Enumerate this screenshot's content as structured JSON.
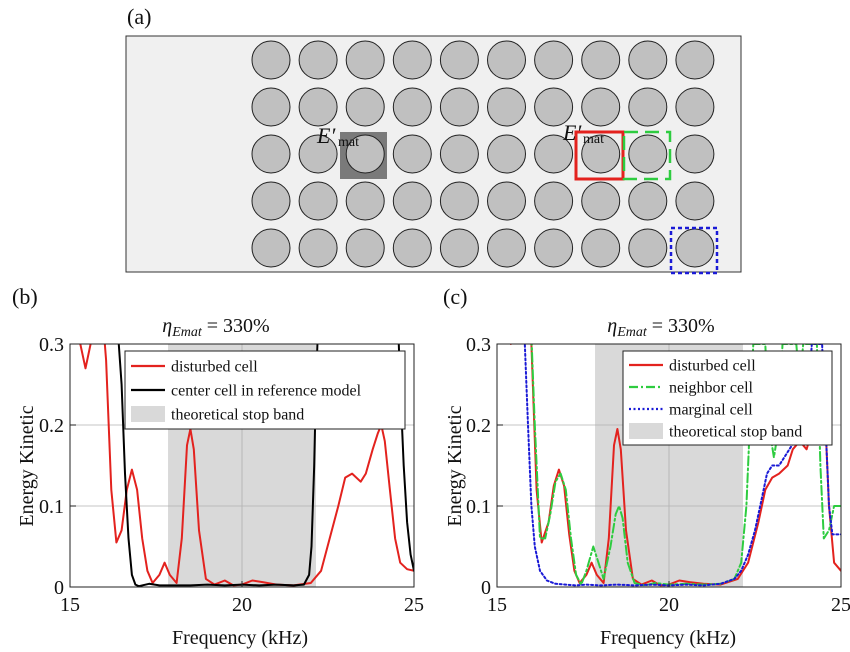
{
  "panels": {
    "a": {
      "label": "(a)",
      "e_label": "E′",
      "e_sub": "mat"
    },
    "b": {
      "label": "(b)"
    },
    "c": {
      "label": "(c)"
    }
  },
  "colors": {
    "disturbed": "#e3221e",
    "reference": "#000000",
    "neighbor": "#2ecc40",
    "marginal": "#1a1ad6",
    "stopband": "#d9d9d9",
    "plate": "#f0f0f0",
    "inclusion": "#c0c0c0",
    "highlight": "#7a7a7a"
  },
  "chart_data": [
    {
      "panel": "b",
      "type": "line",
      "title_eta": "η",
      "title_sub": "Emat",
      "title_rest": " = 330%",
      "xlabel": "Frequency (kHz)",
      "ylabel": "Energy Kinetic",
      "xlim": [
        15,
        25
      ],
      "ylim": [
        0,
        0.3
      ],
      "xticks": [
        "15",
        "20",
        "25"
      ],
      "yticks": [
        "0",
        "0.1",
        "0.2",
        "0.3"
      ],
      "grid": true,
      "legend_position": "top-right",
      "stop_band": {
        "from": 17.85,
        "to": 22.15,
        "label": "theoretical stop band"
      },
      "series": [
        {
          "name": "disturbed cell",
          "color": "#e3221e",
          "style": "solid",
          "points": [
            [
              15.0,
              0.32
            ],
            [
              15.15,
              0.34
            ],
            [
              15.3,
              0.3
            ],
            [
              15.45,
              0.27
            ],
            [
              15.6,
              0.3
            ],
            [
              15.75,
              0.34
            ],
            [
              15.9,
              0.36
            ],
            [
              16.05,
              0.28
            ],
            [
              16.2,
              0.12
            ],
            [
              16.35,
              0.055
            ],
            [
              16.5,
              0.07
            ],
            [
              16.65,
              0.12
            ],
            [
              16.8,
              0.145
            ],
            [
              16.95,
              0.12
            ],
            [
              17.1,
              0.06
            ],
            [
              17.25,
              0.02
            ],
            [
              17.4,
              0.005
            ],
            [
              17.6,
              0.015
            ],
            [
              17.75,
              0.03
            ],
            [
              17.9,
              0.015
            ],
            [
              18.1,
              0.005
            ],
            [
              18.25,
              0.06
            ],
            [
              18.4,
              0.175
            ],
            [
              18.5,
              0.195
            ],
            [
              18.6,
              0.17
            ],
            [
              18.75,
              0.07
            ],
            [
              18.95,
              0.01
            ],
            [
              19.2,
              0.003
            ],
            [
              19.5,
              0.008
            ],
            [
              19.75,
              0.002
            ],
            [
              20.0,
              0.003
            ],
            [
              20.3,
              0.008
            ],
            [
              20.6,
              0.006
            ],
            [
              21.0,
              0.003
            ],
            [
              21.5,
              0.002
            ],
            [
              22.0,
              0.005
            ],
            [
              22.3,
              0.02
            ],
            [
              22.55,
              0.06
            ],
            [
              22.8,
              0.1
            ],
            [
              23.0,
              0.135
            ],
            [
              23.2,
              0.14
            ],
            [
              23.45,
              0.13
            ],
            [
              23.6,
              0.14
            ],
            [
              23.8,
              0.17
            ],
            [
              23.95,
              0.19
            ],
            [
              24.05,
              0.2
            ],
            [
              24.15,
              0.18
            ],
            [
              24.3,
              0.12
            ],
            [
              24.45,
              0.06
            ],
            [
              24.6,
              0.03
            ],
            [
              24.8,
              0.022
            ],
            [
              25.0,
              0.02
            ]
          ]
        },
        {
          "name": "center cell in reference model",
          "color": "#000000",
          "style": "solid",
          "points": [
            [
              16.4,
              0.31
            ],
            [
              16.5,
              0.25
            ],
            [
              16.6,
              0.14
            ],
            [
              16.7,
              0.06
            ],
            [
              16.8,
              0.015
            ],
            [
              16.9,
              0.003
            ],
            [
              17.0,
              0.001
            ],
            [
              17.3,
              0.004
            ],
            [
              17.6,
              0.002
            ],
            [
              18.0,
              0.002
            ],
            [
              18.5,
              0.002
            ],
            [
              19.0,
              0.003
            ],
            [
              19.5,
              0.002
            ],
            [
              20.0,
              0.003
            ],
            [
              20.5,
              0.002
            ],
            [
              21.0,
              0.003
            ],
            [
              21.5,
              0.002
            ],
            [
              21.8,
              0.003
            ],
            [
              21.95,
              0.015
            ],
            [
              22.02,
              0.05
            ],
            [
              22.1,
              0.15
            ],
            [
              22.15,
              0.25
            ],
            [
              22.2,
              0.31
            ],
            [
              24.55,
              0.31
            ],
            [
              24.6,
              0.25
            ],
            [
              24.7,
              0.15
            ],
            [
              24.8,
              0.08
            ],
            [
              24.9,
              0.04
            ],
            [
              25.0,
              0.02
            ]
          ]
        }
      ],
      "legend": [
        {
          "name": "disturbed cell",
          "kind": "line",
          "color": "#e3221e",
          "style": "solid"
        },
        {
          "name": "center cell in reference model",
          "kind": "line",
          "color": "#000000",
          "style": "solid"
        },
        {
          "name": "theoretical stop band",
          "kind": "patch",
          "color": "#d9d9d9",
          "style": "solid"
        }
      ]
    },
    {
      "panel": "c",
      "type": "line",
      "title_eta": "η",
      "title_sub": "Emat",
      "title_rest": " = 330%",
      "xlabel": "Frequency (kHz)",
      "ylabel": "Energy Kinetic",
      "xlim": [
        15,
        25
      ],
      "ylim": [
        0,
        0.3
      ],
      "xticks": [
        "15",
        "20",
        "25"
      ],
      "yticks": [
        "0",
        "0.1",
        "0.2",
        "0.3"
      ],
      "grid": true,
      "legend_position": "top-right",
      "stop_band": {
        "from": 17.85,
        "to": 22.15,
        "label": "theoretical stop band"
      },
      "series": [
        {
          "name": "disturbed cell",
          "color": "#e3221e",
          "style": "solid",
          "points": [
            [
              15.0,
              0.32
            ],
            [
              15.2,
              0.31
            ],
            [
              15.4,
              0.3
            ],
            [
              15.6,
              0.31
            ],
            [
              15.8,
              0.33
            ],
            [
              16.0,
              0.3
            ],
            [
              16.15,
              0.12
            ],
            [
              16.3,
              0.055
            ],
            [
              16.5,
              0.08
            ],
            [
              16.65,
              0.125
            ],
            [
              16.8,
              0.145
            ],
            [
              16.95,
              0.125
            ],
            [
              17.1,
              0.065
            ],
            [
              17.25,
              0.02
            ],
            [
              17.4,
              0.005
            ],
            [
              17.6,
              0.015
            ],
            [
              17.75,
              0.03
            ],
            [
              17.9,
              0.015
            ],
            [
              18.1,
              0.005
            ],
            [
              18.25,
              0.06
            ],
            [
              18.4,
              0.175
            ],
            [
              18.5,
              0.195
            ],
            [
              18.6,
              0.17
            ],
            [
              18.75,
              0.07
            ],
            [
              18.95,
              0.01
            ],
            [
              19.2,
              0.003
            ],
            [
              19.5,
              0.008
            ],
            [
              19.75,
              0.002
            ],
            [
              20.0,
              0.003
            ],
            [
              20.3,
              0.008
            ],
            [
              20.6,
              0.006
            ],
            [
              21.0,
              0.004
            ],
            [
              21.5,
              0.003
            ],
            [
              22.0,
              0.01
            ],
            [
              22.3,
              0.03
            ],
            [
              22.6,
              0.08
            ],
            [
              22.8,
              0.12
            ],
            [
              23.0,
              0.135
            ],
            [
              23.2,
              0.14
            ],
            [
              23.45,
              0.15
            ],
            [
              23.6,
              0.17
            ],
            [
              23.8,
              0.18
            ],
            [
              24.0,
              0.17
            ],
            [
              24.2,
              0.2
            ],
            [
              24.4,
              0.23
            ],
            [
              24.55,
              0.2
            ],
            [
              24.65,
              0.1
            ],
            [
              24.8,
              0.03
            ],
            [
              25.0,
              0.02
            ]
          ]
        },
        {
          "name": "neighbor cell",
          "color": "#2ecc40",
          "style": "dashdot",
          "points": [
            [
              16.0,
              0.31
            ],
            [
              16.1,
              0.2
            ],
            [
              16.25,
              0.06
            ],
            [
              16.4,
              0.06
            ],
            [
              16.55,
              0.09
            ],
            [
              16.7,
              0.13
            ],
            [
              16.85,
              0.14
            ],
            [
              17.0,
              0.12
            ],
            [
              17.15,
              0.06
            ],
            [
              17.3,
              0.015
            ],
            [
              17.45,
              0.003
            ],
            [
              17.6,
              0.02
            ],
            [
              17.8,
              0.05
            ],
            [
              17.95,
              0.03
            ],
            [
              18.1,
              0.01
            ],
            [
              18.3,
              0.05
            ],
            [
              18.45,
              0.09
            ],
            [
              18.55,
              0.1
            ],
            [
              18.65,
              0.085
            ],
            [
              18.8,
              0.03
            ],
            [
              19.0,
              0.005
            ],
            [
              19.3,
              0.002
            ],
            [
              19.6,
              0.005
            ],
            [
              20.0,
              0.003
            ],
            [
              20.5,
              0.004
            ],
            [
              21.0,
              0.003
            ],
            [
              21.5,
              0.004
            ],
            [
              21.9,
              0.01
            ],
            [
              22.1,
              0.03
            ],
            [
              22.25,
              0.1
            ],
            [
              22.35,
              0.2
            ],
            [
              22.45,
              0.3
            ],
            [
              22.8,
              0.3
            ],
            [
              22.9,
              0.2
            ],
            [
              23.05,
              0.16
            ],
            [
              23.2,
              0.2
            ],
            [
              23.3,
              0.3
            ],
            [
              23.7,
              0.3
            ],
            [
              23.8,
              0.25
            ],
            [
              23.9,
              0.3
            ],
            [
              24.3,
              0.3
            ],
            [
              24.4,
              0.15
            ],
            [
              24.5,
              0.06
            ],
            [
              24.65,
              0.07
            ],
            [
              24.8,
              0.1
            ],
            [
              25.0,
              0.1
            ]
          ]
        },
        {
          "name": "marginal cell",
          "color": "#1a1ad6",
          "style": "dotted",
          "points": [
            [
              15.8,
              0.31
            ],
            [
              15.9,
              0.2
            ],
            [
              16.0,
              0.1
            ],
            [
              16.1,
              0.05
            ],
            [
              16.25,
              0.02
            ],
            [
              16.45,
              0.008
            ],
            [
              16.7,
              0.004
            ],
            [
              17.0,
              0.003
            ],
            [
              17.3,
              0.002
            ],
            [
              17.6,
              0.003
            ],
            [
              18.0,
              0.002
            ],
            [
              18.5,
              0.003
            ],
            [
              19.0,
              0.002
            ],
            [
              19.5,
              0.003
            ],
            [
              20.0,
              0.002
            ],
            [
              20.5,
              0.003
            ],
            [
              21.0,
              0.002
            ],
            [
              21.5,
              0.004
            ],
            [
              21.9,
              0.01
            ],
            [
              22.1,
              0.02
            ],
            [
              22.3,
              0.04
            ],
            [
              22.5,
              0.07
            ],
            [
              22.7,
              0.11
            ],
            [
              22.85,
              0.14
            ],
            [
              23.0,
              0.15
            ],
            [
              23.2,
              0.15
            ],
            [
              23.5,
              0.17
            ],
            [
              23.8,
              0.19
            ],
            [
              24.0,
              0.2
            ],
            [
              24.15,
              0.3
            ],
            [
              24.45,
              0.3
            ],
            [
              24.55,
              0.2
            ],
            [
              24.65,
              0.1
            ],
            [
              24.75,
              0.065
            ],
            [
              24.9,
              0.065
            ],
            [
              25.0,
              0.065
            ]
          ]
        }
      ],
      "legend": [
        {
          "name": "disturbed cell",
          "kind": "line",
          "color": "#e3221e",
          "style": "solid"
        },
        {
          "name": "neighbor cell",
          "kind": "line",
          "color": "#2ecc40",
          "style": "dashdot"
        },
        {
          "name": "marginal cell",
          "kind": "line",
          "color": "#1a1ad6",
          "style": "dotted"
        },
        {
          "name": "theoretical stop band",
          "kind": "patch",
          "color": "#d9d9d9",
          "style": "solid"
        }
      ]
    }
  ]
}
